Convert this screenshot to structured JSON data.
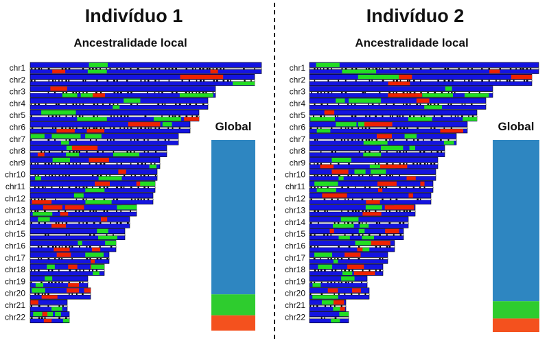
{
  "colors": {
    "european": "#1414e0",
    "african": "#22dd22",
    "native_american": "#ee2200",
    "global_blue": "#2e86c1",
    "global_green": "#2ecc2e",
    "global_red": "#f4511e",
    "background": "#ffffff"
  },
  "panels": [
    {
      "title": "Indivíduo 1",
      "subtitle": "Ancestralidade local",
      "global_label": "Global",
      "global": [
        {
          "color": "global_blue",
          "fraction": 0.81
        },
        {
          "color": "global_green",
          "fraction": 0.11
        },
        {
          "color": "global_red",
          "fraction": 0.08
        }
      ]
    },
    {
      "title": "Indivíduo 2",
      "subtitle": "Ancestralidade local",
      "global_label": "Global",
      "global": [
        {
          "color": "global_blue",
          "fraction": 0.84
        },
        {
          "color": "global_green",
          "fraction": 0.09
        },
        {
          "color": "global_red",
          "fraction": 0.07
        }
      ]
    }
  ],
  "chromosomes": [
    {
      "label": "chr1",
      "length": 1.0
    },
    {
      "label": "chr2",
      "length": 0.97
    },
    {
      "label": "chr3",
      "length": 0.8
    },
    {
      "label": "chr4",
      "length": 0.77
    },
    {
      "label": "chr5",
      "length": 0.73
    },
    {
      "label": "chr6",
      "length": 0.69
    },
    {
      "label": "chr7",
      "length": 0.64
    },
    {
      "label": "chr8",
      "length": 0.59
    },
    {
      "label": "chr9",
      "length": 0.56
    },
    {
      "label": "chr10",
      "length": 0.55
    },
    {
      "label": "chr11",
      "length": 0.54
    },
    {
      "label": "chr12",
      "length": 0.53
    },
    {
      "label": "chr13",
      "length": 0.46
    },
    {
      "label": "chr14",
      "length": 0.43
    },
    {
      "label": "chr15",
      "length": 0.41
    },
    {
      "label": "chr16",
      "length": 0.37
    },
    {
      "label": "chr17",
      "length": 0.34
    },
    {
      "label": "chr18",
      "length": 0.32
    },
    {
      "label": "chr19",
      "length": 0.25
    },
    {
      "label": "chr20",
      "length": 0.26
    },
    {
      "label": "chr21",
      "length": 0.16
    },
    {
      "label": "chr22",
      "length": 0.17
    }
  ]
}
